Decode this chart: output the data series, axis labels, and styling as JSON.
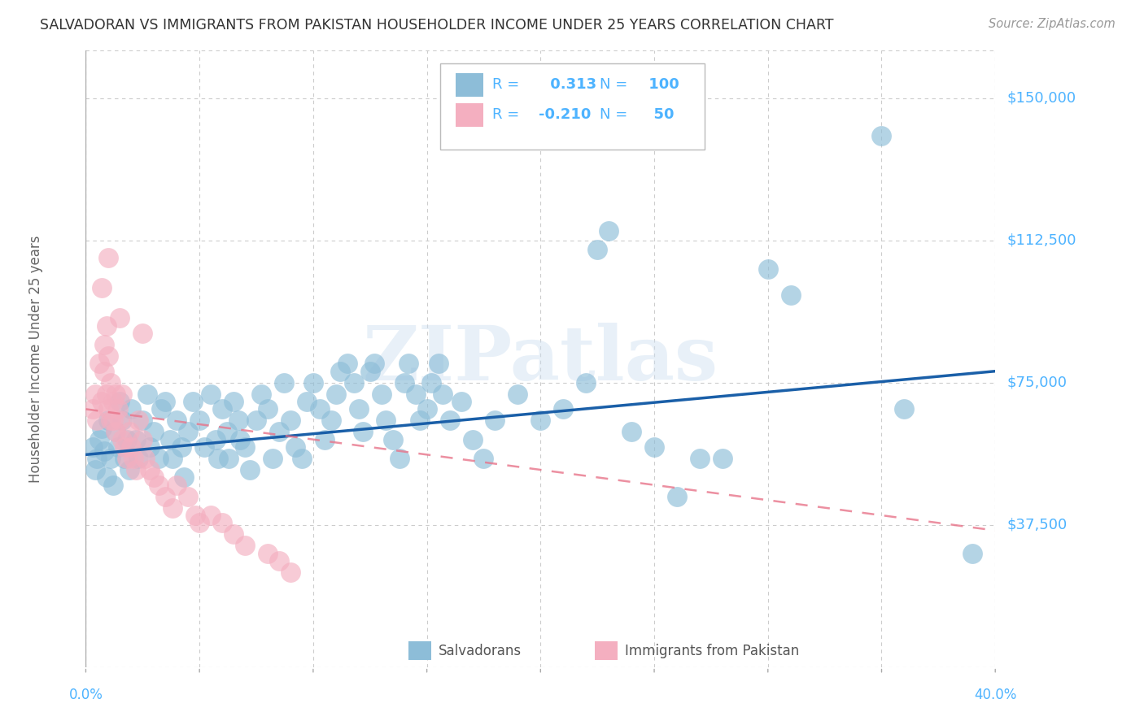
{
  "title": "SALVADORAN VS IMMIGRANTS FROM PAKISTAN HOUSEHOLDER INCOME UNDER 25 YEARS CORRELATION CHART",
  "source": "Source: ZipAtlas.com",
  "ylabel": "Householder Income Under 25 years",
  "ytick_values": [
    37500,
    75000,
    112500,
    150000
  ],
  "ytick_labels": [
    "$37,500",
    "$75,000",
    "$112,500",
    "$150,000"
  ],
  "ylim": [
    0,
    162500
  ],
  "xlim": [
    0.0,
    0.4
  ],
  "xtick_values": [
    0.0,
    0.05,
    0.1,
    0.15,
    0.2,
    0.25,
    0.3,
    0.35,
    0.4
  ],
  "xtick_labels": [
    "0.0%",
    "",
    "",
    "",
    "",
    "",
    "",
    "",
    "40.0%"
  ],
  "blue_R": 0.313,
  "blue_N": 100,
  "pink_R": -0.21,
  "pink_N": 50,
  "legend_labels": [
    "Salvadorans",
    "Immigrants from Pakistan"
  ],
  "blue_color": "#8dbdd8",
  "pink_color": "#f4afc0",
  "blue_line_color": "#1a5fa8",
  "pink_line_color": "#e8748a",
  "watermark": "ZIPatlas",
  "title_color": "#333333",
  "axis_label_color": "#4db3ff",
  "grid_color": "#cccccc",
  "blue_trend_x": [
    0.0,
    0.4
  ],
  "blue_trend_y": [
    56000,
    78000
  ],
  "pink_trend_x": [
    0.0,
    0.4
  ],
  "pink_trend_y": [
    68000,
    36000
  ],
  "blue_scatter": [
    [
      0.003,
      58000
    ],
    [
      0.004,
      52000
    ],
    [
      0.005,
      55000
    ],
    [
      0.006,
      60000
    ],
    [
      0.007,
      63000
    ],
    [
      0.008,
      57000
    ],
    [
      0.009,
      50000
    ],
    [
      0.01,
      65000
    ],
    [
      0.011,
      55000
    ],
    [
      0.012,
      48000
    ],
    [
      0.013,
      62000
    ],
    [
      0.014,
      58000
    ],
    [
      0.015,
      70000
    ],
    [
      0.016,
      65000
    ],
    [
      0.017,
      55000
    ],
    [
      0.018,
      60000
    ],
    [
      0.019,
      52000
    ],
    [
      0.02,
      68000
    ],
    [
      0.022,
      60000
    ],
    [
      0.023,
      55000
    ],
    [
      0.025,
      65000
    ],
    [
      0.027,
      72000
    ],
    [
      0.028,
      58000
    ],
    [
      0.03,
      62000
    ],
    [
      0.032,
      55000
    ],
    [
      0.033,
      68000
    ],
    [
      0.035,
      70000
    ],
    [
      0.037,
      60000
    ],
    [
      0.038,
      55000
    ],
    [
      0.04,
      65000
    ],
    [
      0.042,
      58000
    ],
    [
      0.043,
      50000
    ],
    [
      0.045,
      62000
    ],
    [
      0.047,
      70000
    ],
    [
      0.05,
      65000
    ],
    [
      0.052,
      58000
    ],
    [
      0.055,
      72000
    ],
    [
      0.057,
      60000
    ],
    [
      0.058,
      55000
    ],
    [
      0.06,
      68000
    ],
    [
      0.062,
      62000
    ],
    [
      0.063,
      55000
    ],
    [
      0.065,
      70000
    ],
    [
      0.067,
      65000
    ],
    [
      0.068,
      60000
    ],
    [
      0.07,
      58000
    ],
    [
      0.072,
      52000
    ],
    [
      0.075,
      65000
    ],
    [
      0.077,
      72000
    ],
    [
      0.08,
      68000
    ],
    [
      0.082,
      55000
    ],
    [
      0.085,
      62000
    ],
    [
      0.087,
      75000
    ],
    [
      0.09,
      65000
    ],
    [
      0.092,
      58000
    ],
    [
      0.095,
      55000
    ],
    [
      0.097,
      70000
    ],
    [
      0.1,
      75000
    ],
    [
      0.103,
      68000
    ],
    [
      0.105,
      60000
    ],
    [
      0.108,
      65000
    ],
    [
      0.11,
      72000
    ],
    [
      0.112,
      78000
    ],
    [
      0.115,
      80000
    ],
    [
      0.118,
      75000
    ],
    [
      0.12,
      68000
    ],
    [
      0.122,
      62000
    ],
    [
      0.125,
      78000
    ],
    [
      0.127,
      80000
    ],
    [
      0.13,
      72000
    ],
    [
      0.132,
      65000
    ],
    [
      0.135,
      60000
    ],
    [
      0.138,
      55000
    ],
    [
      0.14,
      75000
    ],
    [
      0.142,
      80000
    ],
    [
      0.145,
      72000
    ],
    [
      0.147,
      65000
    ],
    [
      0.15,
      68000
    ],
    [
      0.152,
      75000
    ],
    [
      0.155,
      80000
    ],
    [
      0.157,
      72000
    ],
    [
      0.16,
      65000
    ],
    [
      0.165,
      70000
    ],
    [
      0.17,
      60000
    ],
    [
      0.175,
      55000
    ],
    [
      0.18,
      65000
    ],
    [
      0.19,
      72000
    ],
    [
      0.2,
      65000
    ],
    [
      0.21,
      68000
    ],
    [
      0.22,
      75000
    ],
    [
      0.225,
      110000
    ],
    [
      0.23,
      115000
    ],
    [
      0.24,
      62000
    ],
    [
      0.25,
      58000
    ],
    [
      0.26,
      45000
    ],
    [
      0.27,
      55000
    ],
    [
      0.28,
      55000
    ],
    [
      0.3,
      105000
    ],
    [
      0.31,
      98000
    ],
    [
      0.35,
      140000
    ],
    [
      0.36,
      68000
    ],
    [
      0.39,
      30000
    ]
  ],
  "pink_scatter": [
    [
      0.003,
      68000
    ],
    [
      0.004,
      72000
    ],
    [
      0.005,
      65000
    ],
    [
      0.006,
      80000
    ],
    [
      0.007,
      70000
    ],
    [
      0.007,
      100000
    ],
    [
      0.008,
      78000
    ],
    [
      0.008,
      85000
    ],
    [
      0.009,
      72000
    ],
    [
      0.009,
      90000
    ],
    [
      0.01,
      68000
    ],
    [
      0.01,
      82000
    ],
    [
      0.011,
      65000
    ],
    [
      0.011,
      75000
    ],
    [
      0.012,
      70000
    ],
    [
      0.012,
      65000
    ],
    [
      0.013,
      62000
    ],
    [
      0.013,
      72000
    ],
    [
      0.014,
      68000
    ],
    [
      0.015,
      65000
    ],
    [
      0.016,
      60000
    ],
    [
      0.016,
      72000
    ],
    [
      0.017,
      58000
    ],
    [
      0.018,
      55000
    ],
    [
      0.019,
      62000
    ],
    [
      0.02,
      58000
    ],
    [
      0.021,
      55000
    ],
    [
      0.022,
      52000
    ],
    [
      0.023,
      65000
    ],
    [
      0.025,
      60000
    ],
    [
      0.026,
      55000
    ],
    [
      0.028,
      52000
    ],
    [
      0.03,
      50000
    ],
    [
      0.032,
      48000
    ],
    [
      0.035,
      45000
    ],
    [
      0.038,
      42000
    ],
    [
      0.04,
      48000
    ],
    [
      0.045,
      45000
    ],
    [
      0.048,
      40000
    ],
    [
      0.05,
      38000
    ],
    [
      0.055,
      40000
    ],
    [
      0.06,
      38000
    ],
    [
      0.065,
      35000
    ],
    [
      0.07,
      32000
    ],
    [
      0.08,
      30000
    ],
    [
      0.085,
      28000
    ],
    [
      0.09,
      25000
    ],
    [
      0.01,
      108000
    ],
    [
      0.015,
      92000
    ],
    [
      0.025,
      88000
    ]
  ]
}
